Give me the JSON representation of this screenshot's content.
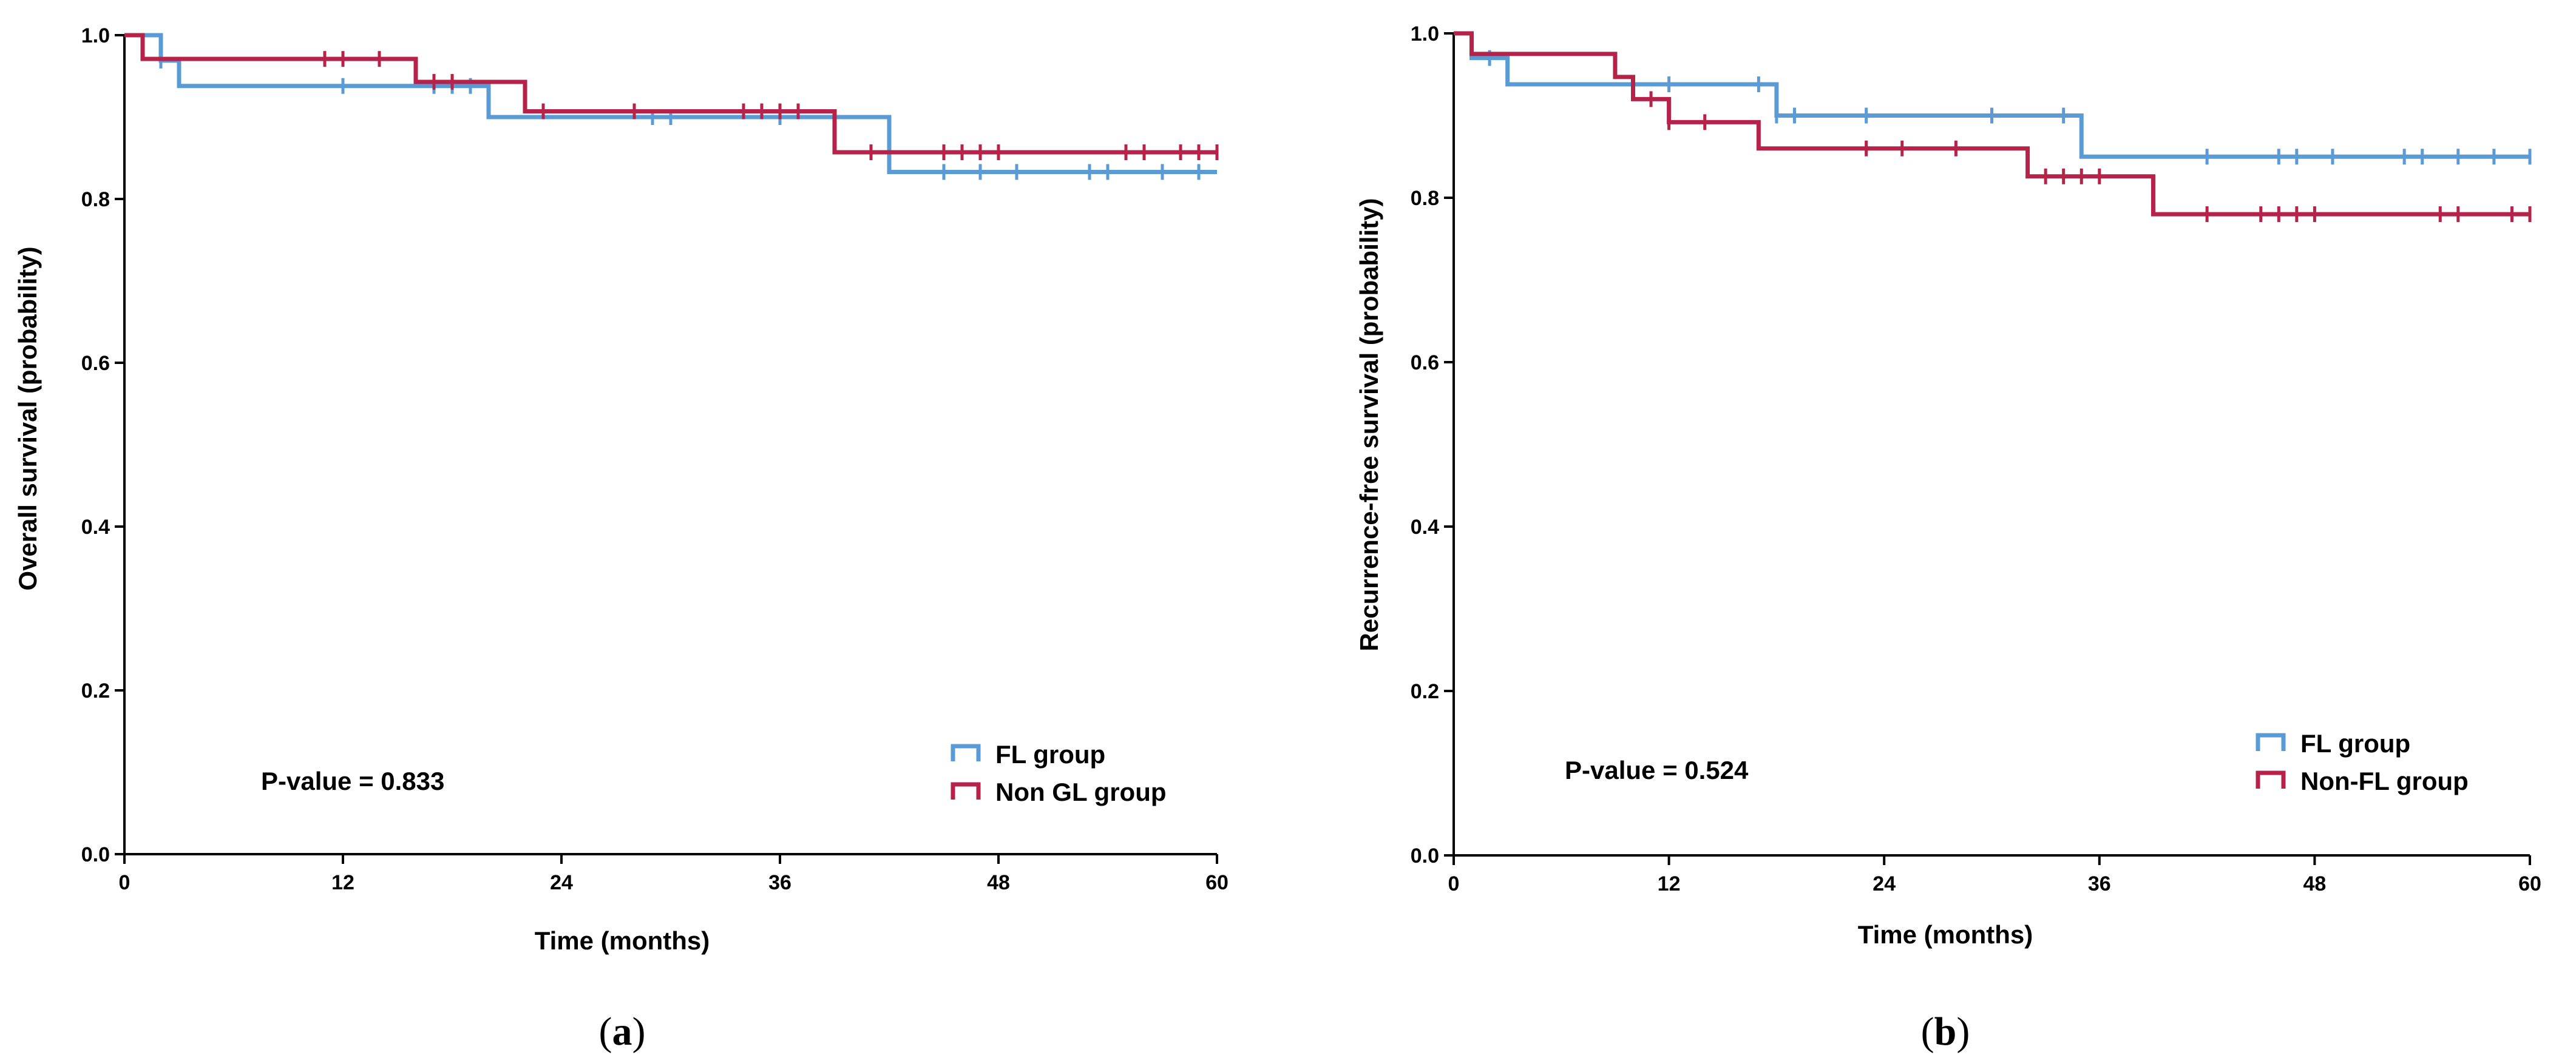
{
  "chart_data": [
    {
      "type": "line",
      "panel": "a",
      "panel_label": "a",
      "xlabel": "Time (months)",
      "ylabel": "Overall survival (probability)",
      "xlim": [
        0,
        60
      ],
      "ylim": [
        0,
        1.0
      ],
      "xticks": [
        0,
        12,
        24,
        36,
        48,
        60
      ],
      "yticks": [
        0.0,
        0.2,
        0.4,
        0.6,
        0.8,
        1.0
      ],
      "ytick_labels": [
        "0.0",
        "0.2",
        "0.4",
        "0.6",
        "0.8",
        "1.0"
      ],
      "xtick_labels": [
        "0",
        "12",
        "24",
        "36",
        "48",
        "60"
      ],
      "legend": {
        "placement": "bottom-right",
        "entries": [
          "FL group",
          "Non GL group"
        ]
      },
      "annotation": "P-value = 0.833",
      "series": [
        {
          "name": "FL group",
          "color": "#5b9bd5",
          "steps": [
            [
              0,
              1.0
            ],
            [
              2,
              0.969
            ],
            [
              3,
              0.938
            ],
            [
              20,
              0.9
            ],
            [
              42,
              0.833
            ],
            [
              60,
              0.833
            ]
          ],
          "censored": [
            2,
            12,
            17,
            18,
            19,
            29,
            30,
            36,
            45,
            47,
            49,
            53,
            54,
            57,
            59
          ]
        },
        {
          "name": "Non GL group",
          "color": "#b5234a",
          "steps": [
            [
              0,
              1.0
            ],
            [
              1,
              0.971
            ],
            [
              16,
              0.943
            ],
            [
              22,
              0.907
            ],
            [
              39,
              0.857
            ],
            [
              60,
              0.857
            ]
          ],
          "censored": [
            11,
            12,
            14,
            17,
            18,
            23,
            28,
            34,
            35,
            36,
            37,
            41,
            45,
            46,
            47,
            48,
            55,
            56,
            58,
            59,
            60
          ]
        }
      ]
    },
    {
      "type": "line",
      "panel": "b",
      "panel_label": "b",
      "xlabel": "Time (months)",
      "ylabel": "Recurrence-free survival (probability)",
      "xlim": [
        0,
        60
      ],
      "ylim": [
        0,
        1.0
      ],
      "xticks": [
        0,
        12,
        24,
        36,
        48,
        60
      ],
      "yticks": [
        0.0,
        0.2,
        0.4,
        0.6,
        0.8,
        1.0
      ],
      "ytick_labels": [
        "0.0",
        "0.2",
        "0.4",
        "0.6",
        "0.8",
        "1.0"
      ],
      "xtick_labels": [
        "0",
        "12",
        "24",
        "36",
        "48",
        "60"
      ],
      "legend": {
        "placement": "bottom-right",
        "entries": [
          "FL group",
          "Non-FL group"
        ]
      },
      "annotation": "P-value = 0.524",
      "series": [
        {
          "name": "FL group",
          "color": "#5b9bd5",
          "steps": [
            [
              0,
              1.0
            ],
            [
              1,
              0.97
            ],
            [
              3,
              0.938
            ],
            [
              18,
              0.9
            ],
            [
              35,
              0.85
            ],
            [
              60,
              0.85
            ]
          ],
          "censored": [
            2,
            12,
            17,
            18,
            19,
            23,
            30,
            34,
            42,
            46,
            47,
            49,
            53,
            54,
            56,
            58,
            60
          ]
        },
        {
          "name": "Non-FL group",
          "color": "#b5234a",
          "steps": [
            [
              0,
              1.0
            ],
            [
              1,
              0.975
            ],
            [
              9,
              0.947
            ],
            [
              10,
              0.92
            ],
            [
              12,
              0.892
            ],
            [
              17,
              0.86
            ],
            [
              32,
              0.826
            ],
            [
              39,
              0.78
            ],
            [
              60,
              0.78
            ]
          ],
          "censored": [
            11,
            12,
            14,
            23,
            25,
            28,
            33,
            34,
            35,
            36,
            42,
            45,
            46,
            47,
            48,
            55,
            56,
            59,
            60
          ]
        }
      ]
    }
  ]
}
